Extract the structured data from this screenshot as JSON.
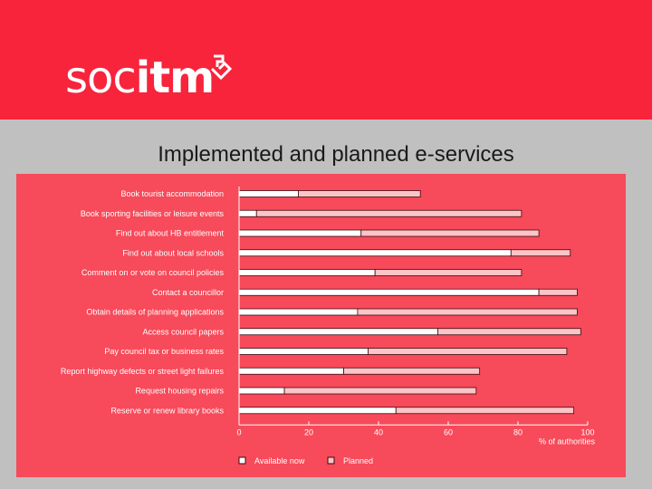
{
  "header": {
    "logo_soc": "soc",
    "logo_itm": "itm",
    "brand_color": "#f7243c"
  },
  "slide": {
    "title": "Implemented and planned e-services"
  },
  "chart_data": {
    "type": "bar",
    "orientation": "horizontal",
    "stacked": true,
    "categories": [
      "Book tourist accommodation",
      "Book sporting facilities or leisure events",
      "Find out about HB entitlement",
      "Find out about local schools",
      "Comment on or vote on council policies",
      "Contact a councillor",
      "Obtain details of planning applications",
      "Access council papers",
      "Pay council tax or business rates",
      "Report highway defects or street light failures",
      "Request housing repairs",
      "Reserve or renew library books"
    ],
    "series": [
      {
        "name": "Available now",
        "values": [
          17,
          5,
          35,
          78,
          39,
          86,
          34,
          57,
          37,
          30,
          13,
          45
        ],
        "color": "#ffffff"
      },
      {
        "name": "Planned",
        "values": [
          35,
          76,
          51,
          17,
          42,
          11,
          63,
          41,
          57,
          39,
          55,
          51
        ],
        "color": "#fbc4c6"
      }
    ],
    "xlim": [
      0,
      100
    ],
    "xticks": [
      "0",
      "20",
      "40",
      "60",
      "80",
      "100"
    ],
    "xlabel": "% of authorities",
    "legend_position": "bottom",
    "panel_color": "#f74a5a"
  }
}
